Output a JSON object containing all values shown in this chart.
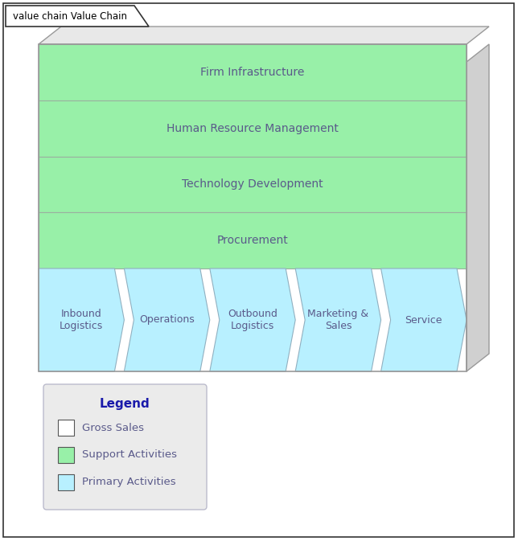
{
  "title": "value chain Value Chain",
  "bg_color": "#ffffff",
  "support_color": "#98f0a8",
  "support_border": "#9ab0a0",
  "primary_color": "#b8f0ff",
  "primary_border": "#90b0c0",
  "shadow_color": "#d8d8d8",
  "outer_border_color": "#999999",
  "support_activities": [
    "Firm Infrastructure",
    "Human Resource Management",
    "Technology Development",
    "Procurement"
  ],
  "primary_activities": [
    "Inbound\nLogistics",
    "Operations",
    "Outbound\nLogistics",
    "Marketing &\nSales",
    "Service"
  ],
  "legend_title": "Legend",
  "legend_items": [
    {
      "label": "Gross Sales",
      "color": "#ffffff"
    },
    {
      "label": "Support Activities",
      "color": "#98f0a8"
    },
    {
      "label": "Primary Activities",
      "color": "#b8f0ff"
    }
  ],
  "text_color": "#5a5a8a",
  "title_text_color": "#000000",
  "title_bold_color": "#000000",
  "legend_title_color": "#1a1aaa"
}
